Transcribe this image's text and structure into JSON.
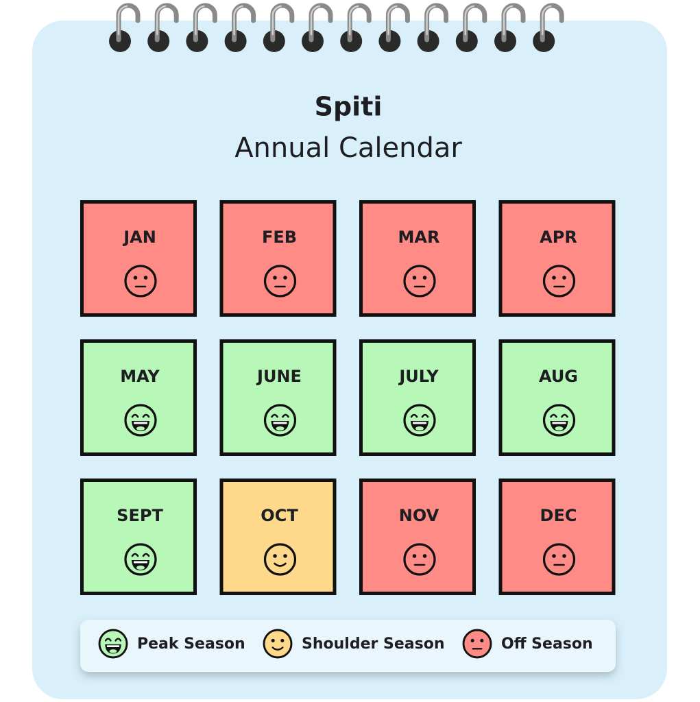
{
  "title": "Spiti",
  "subtitle": "Annual Calendar",
  "months": [
    {
      "label": "JAN",
      "color": "#ff8b86"
    },
    {
      "label": "FEB",
      "color": "#ff8b86"
    },
    {
      "label": "MAR",
      "color": "#ff8b86"
    },
    {
      "label": "APR",
      "color": "#ff8b86"
    },
    {
      "label": "MAY",
      "color": "#b7f7b7"
    },
    {
      "label": "JUNE",
      "color": "#b7f7b7"
    },
    {
      "label": "JULY",
      "color": "#b7f7b7"
    },
    {
      "label": "AUG",
      "color": "#b7f7b7"
    },
    {
      "label": "SEPT",
      "color": "#b7f7b7"
    },
    {
      "label": "OCT",
      "color": "#ffd98b"
    },
    {
      "label": "NOV",
      "color": "#ff8b86"
    },
    {
      "label": "DEC",
      "color": "#ff8b86"
    }
  ],
  "legend": [
    {
      "label": "Peak Season",
      "color": "#b7f7b7"
    },
    {
      "label": "Shoulder Season",
      "color": "#ffd98b"
    },
    {
      "label": "Off Season",
      "color": "#ff8b86"
    }
  ]
}
